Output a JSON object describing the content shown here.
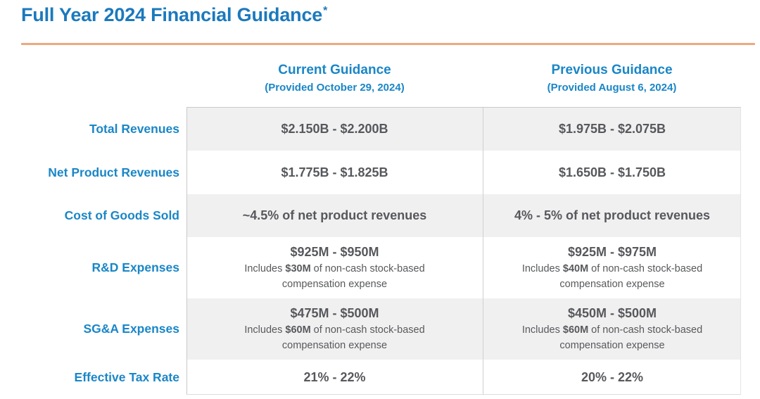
{
  "title": {
    "text": "Full Year 2024 Financial Guidance",
    "footnote_marker": "*"
  },
  "columns": [
    {
      "label": "Current Guidance",
      "sublabel": "(Provided October 29, 2024)"
    },
    {
      "label": "Previous Guidance",
      "sublabel": "(Provided August 6, 2024)"
    }
  ],
  "rows": [
    {
      "label": "Total Revenues",
      "current": {
        "value": "$2.150B - $2.200B"
      },
      "previous": {
        "value": "$1.975B - $2.075B"
      }
    },
    {
      "label": "Net Product Revenues",
      "current": {
        "value": "$1.775B - $1.825B"
      },
      "previous": {
        "value": "$1.650B - $1.750B"
      }
    },
    {
      "label": "Cost of Goods Sold",
      "current": {
        "value": "~4.5% of net product revenues"
      },
      "previous": {
        "value": "4% - 5% of net product revenues"
      }
    },
    {
      "label": "R&D Expenses",
      "current": {
        "value": "$925M - $950M",
        "note_prefix": "Includes ",
        "note_amount": "$30M",
        "note_suffix": " of non-cash stock-based compensation expense"
      },
      "previous": {
        "value": "$925M - $975M",
        "note_prefix": "Includes ",
        "note_amount": "$40M",
        "note_suffix": " of non-cash stock-based compensation expense"
      }
    },
    {
      "label": "SG&A Expenses",
      "current": {
        "value": "$475M - $500M",
        "note_prefix": "Includes ",
        "note_amount": "$60M",
        "note_suffix": " of non-cash stock-based compensation expense"
      },
      "previous": {
        "value": "$450M - $500M",
        "note_prefix": "Includes ",
        "note_amount": "$60M",
        "note_suffix": " of non-cash stock-based compensation expense"
      }
    },
    {
      "label": "Effective Tax Rate",
      "current": {
        "value": "21% - 22%"
      },
      "previous": {
        "value": "20% - 22%"
      }
    }
  ],
  "colors": {
    "title_blue": "#1B79BD",
    "accent_blue": "#1A86C7",
    "divider_orange": "#EBA97D",
    "row_shade_gray": "#F0F0F1",
    "value_text_gray": "#57585C",
    "column_divider_gray": "#CFCFCF"
  }
}
